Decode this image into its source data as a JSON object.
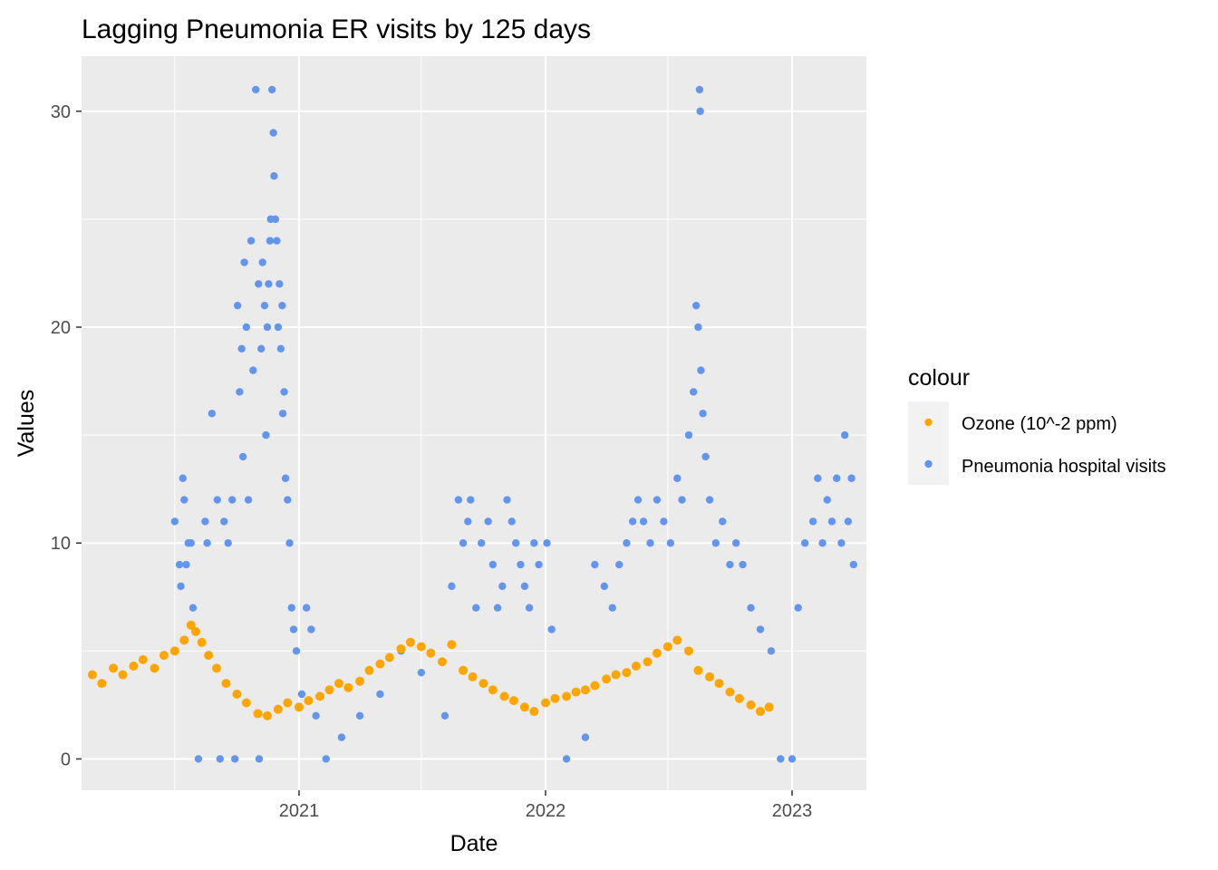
{
  "chart_data": {
    "type": "scatter",
    "title": "Lagging Pneumonia ER visits by 125 days",
    "xlabel": "Date",
    "ylabel": "Values",
    "x_axis_type": "date",
    "xlim": [
      "2020-02-14",
      "2023-04-21"
    ],
    "ylim": [
      -1.45,
      32.55
    ],
    "x_ticks": [
      {
        "date": "2021-01-01",
        "label": "2021"
      },
      {
        "date": "2022-01-01",
        "label": "2022"
      },
      {
        "date": "2023-01-01",
        "label": "2023"
      }
    ],
    "x_minor_ticks": [
      "2020-07-01",
      "2021-07-01",
      "2022-07-01"
    ],
    "y_ticks": [
      0,
      10,
      20,
      30
    ],
    "y_minor_ticks": [
      5,
      15,
      25
    ],
    "grid": true,
    "panel_background": "#ebebeb",
    "legend": {
      "title": "colour",
      "placement": "right",
      "entries": [
        "Ozone (10^-2 ppm)",
        "Pneumonia hospital visits"
      ]
    },
    "series": [
      {
        "name": "Pneumonia hospital visits",
        "color": "#6495ed",
        "points": [
          [
            "2020-07-01",
            11
          ],
          [
            "2020-07-08",
            9
          ],
          [
            "2020-07-10",
            8
          ],
          [
            "2020-07-13",
            13
          ],
          [
            "2020-07-15",
            12
          ],
          [
            "2020-07-18",
            9
          ],
          [
            "2020-07-21",
            10
          ],
          [
            "2020-07-25",
            10
          ],
          [
            "2020-07-28",
            7
          ],
          [
            "2020-08-05",
            0
          ],
          [
            "2020-08-15",
            11
          ],
          [
            "2020-08-18",
            10
          ],
          [
            "2020-08-25",
            16
          ],
          [
            "2020-09-02",
            12
          ],
          [
            "2020-09-06",
            0
          ],
          [
            "2020-09-12",
            11
          ],
          [
            "2020-09-18",
            10
          ],
          [
            "2020-09-24",
            12
          ],
          [
            "2020-09-28",
            0
          ],
          [
            "2020-10-02",
            21
          ],
          [
            "2020-10-05",
            17
          ],
          [
            "2020-10-08",
            19
          ],
          [
            "2020-10-10",
            14
          ],
          [
            "2020-10-12",
            23
          ],
          [
            "2020-10-15",
            20
          ],
          [
            "2020-10-18",
            12
          ],
          [
            "2020-10-22",
            24
          ],
          [
            "2020-10-25",
            18
          ],
          [
            "2020-10-29",
            31
          ],
          [
            "2020-11-02",
            22
          ],
          [
            "2020-11-03",
            0
          ],
          [
            "2020-11-06",
            19
          ],
          [
            "2020-11-08",
            23
          ],
          [
            "2020-11-11",
            21
          ],
          [
            "2020-11-13",
            15
          ],
          [
            "2020-11-15",
            20
          ],
          [
            "2020-11-17",
            22
          ],
          [
            "2020-11-19",
            24
          ],
          [
            "2020-11-20",
            25
          ],
          [
            "2020-11-22",
            31
          ],
          [
            "2020-11-24",
            29
          ],
          [
            "2020-11-25",
            27
          ],
          [
            "2020-11-27",
            25
          ],
          [
            "2020-11-29",
            24
          ],
          [
            "2020-12-01",
            20
          ],
          [
            "2020-12-03",
            22
          ],
          [
            "2020-12-05",
            19
          ],
          [
            "2020-12-07",
            21
          ],
          [
            "2020-12-08",
            16
          ],
          [
            "2020-12-10",
            17
          ],
          [
            "2020-12-12",
            13
          ],
          [
            "2020-12-15",
            12
          ],
          [
            "2020-12-18",
            10
          ],
          [
            "2020-12-21",
            7
          ],
          [
            "2020-12-24",
            6
          ],
          [
            "2020-12-28",
            5
          ],
          [
            "2021-01-05",
            3
          ],
          [
            "2021-01-12",
            7
          ],
          [
            "2021-01-19",
            6
          ],
          [
            "2021-01-26",
            2
          ],
          [
            "2021-02-10",
            0
          ],
          [
            "2021-03-05",
            1
          ],
          [
            "2021-04-01",
            2
          ],
          [
            "2021-05-01",
            3
          ],
          [
            "2021-06-01",
            5
          ],
          [
            "2021-07-01",
            4
          ],
          [
            "2021-08-05",
            2
          ],
          [
            "2021-08-15",
            8
          ],
          [
            "2021-08-25",
            12
          ],
          [
            "2021-09-01",
            10
          ],
          [
            "2021-09-08",
            11
          ],
          [
            "2021-09-12",
            12
          ],
          [
            "2021-09-20",
            7
          ],
          [
            "2021-09-28",
            10
          ],
          [
            "2021-10-08",
            11
          ],
          [
            "2021-10-15",
            9
          ],
          [
            "2021-10-22",
            7
          ],
          [
            "2021-10-29",
            8
          ],
          [
            "2021-11-05",
            12
          ],
          [
            "2021-11-12",
            11
          ],
          [
            "2021-11-18",
            10
          ],
          [
            "2021-11-25",
            9
          ],
          [
            "2021-12-01",
            8
          ],
          [
            "2021-12-08",
            7
          ],
          [
            "2021-12-15",
            10
          ],
          [
            "2021-12-22",
            9
          ],
          [
            "2022-01-03",
            10
          ],
          [
            "2022-01-10",
            6
          ],
          [
            "2022-02-01",
            0
          ],
          [
            "2022-03-01",
            1
          ],
          [
            "2022-03-15",
            9
          ],
          [
            "2022-03-29",
            8
          ],
          [
            "2022-04-10",
            7
          ],
          [
            "2022-04-20",
            9
          ],
          [
            "2022-05-01",
            10
          ],
          [
            "2022-05-10",
            11
          ],
          [
            "2022-05-18",
            12
          ],
          [
            "2022-05-26",
            11
          ],
          [
            "2022-06-05",
            10
          ],
          [
            "2022-06-15",
            12
          ],
          [
            "2022-06-25",
            11
          ],
          [
            "2022-07-05",
            10
          ],
          [
            "2022-07-15",
            13
          ],
          [
            "2022-07-22",
            12
          ],
          [
            "2022-08-01",
            15
          ],
          [
            "2022-08-08",
            17
          ],
          [
            "2022-08-12",
            21
          ],
          [
            "2022-08-15",
            20
          ],
          [
            "2022-08-17",
            31
          ],
          [
            "2022-08-18",
            30
          ],
          [
            "2022-08-19",
            18
          ],
          [
            "2022-08-22",
            16
          ],
          [
            "2022-08-26",
            14
          ],
          [
            "2022-09-01",
            12
          ],
          [
            "2022-09-10",
            10
          ],
          [
            "2022-09-20",
            11
          ],
          [
            "2022-10-01",
            9
          ],
          [
            "2022-10-10",
            10
          ],
          [
            "2022-10-20",
            9
          ],
          [
            "2022-11-01",
            7
          ],
          [
            "2022-11-15",
            6
          ],
          [
            "2022-12-01",
            5
          ],
          [
            "2022-12-15",
            0
          ],
          [
            "2023-01-01",
            0
          ],
          [
            "2023-01-10",
            7
          ],
          [
            "2023-01-20",
            10
          ],
          [
            "2023-02-01",
            11
          ],
          [
            "2023-02-08",
            13
          ],
          [
            "2023-02-15",
            10
          ],
          [
            "2023-02-22",
            12
          ],
          [
            "2023-03-01",
            11
          ],
          [
            "2023-03-08",
            13
          ],
          [
            "2023-03-15",
            10
          ],
          [
            "2023-03-20",
            15
          ],
          [
            "2023-03-25",
            11
          ],
          [
            "2023-03-30",
            13
          ],
          [
            "2023-04-02",
            9
          ]
        ]
      },
      {
        "name": "Ozone (10^-2 ppm)",
        "color": "#ffa500",
        "points": [
          [
            "2020-03-01",
            3.9
          ],
          [
            "2020-03-15",
            3.5
          ],
          [
            "2020-04-01",
            4.2
          ],
          [
            "2020-04-15",
            3.9
          ],
          [
            "2020-05-01",
            4.3
          ],
          [
            "2020-05-15",
            4.6
          ],
          [
            "2020-06-01",
            4.2
          ],
          [
            "2020-06-15",
            4.8
          ],
          [
            "2020-07-01",
            5.0
          ],
          [
            "2020-07-15",
            5.5
          ],
          [
            "2020-07-25",
            6.2
          ],
          [
            "2020-08-01",
            5.9
          ],
          [
            "2020-08-10",
            5.4
          ],
          [
            "2020-08-20",
            4.8
          ],
          [
            "2020-09-01",
            4.2
          ],
          [
            "2020-09-15",
            3.5
          ],
          [
            "2020-10-01",
            3.0
          ],
          [
            "2020-10-15",
            2.6
          ],
          [
            "2020-11-01",
            2.1
          ],
          [
            "2020-11-15",
            2.0
          ],
          [
            "2020-12-01",
            2.3
          ],
          [
            "2020-12-15",
            2.6
          ],
          [
            "2021-01-01",
            2.4
          ],
          [
            "2021-01-15",
            2.7
          ],
          [
            "2021-02-01",
            2.9
          ],
          [
            "2021-02-15",
            3.2
          ],
          [
            "2021-03-01",
            3.5
          ],
          [
            "2021-03-15",
            3.3
          ],
          [
            "2021-04-01",
            3.6
          ],
          [
            "2021-04-15",
            4.1
          ],
          [
            "2021-05-01",
            4.4
          ],
          [
            "2021-05-15",
            4.7
          ],
          [
            "2021-06-01",
            5.1
          ],
          [
            "2021-06-15",
            5.4
          ],
          [
            "2021-07-01",
            5.2
          ],
          [
            "2021-07-15",
            4.9
          ],
          [
            "2021-08-01",
            4.5
          ],
          [
            "2021-08-15",
            5.3
          ],
          [
            "2021-09-01",
            4.1
          ],
          [
            "2021-09-15",
            3.8
          ],
          [
            "2021-10-01",
            3.5
          ],
          [
            "2021-10-15",
            3.2
          ],
          [
            "2021-11-01",
            2.9
          ],
          [
            "2021-11-15",
            2.7
          ],
          [
            "2021-12-01",
            2.4
          ],
          [
            "2021-12-15",
            2.2
          ],
          [
            "2022-01-01",
            2.6
          ],
          [
            "2022-01-15",
            2.8
          ],
          [
            "2022-02-01",
            2.9
          ],
          [
            "2022-02-15",
            3.1
          ],
          [
            "2022-03-01",
            3.2
          ],
          [
            "2022-03-15",
            3.4
          ],
          [
            "2022-04-01",
            3.7
          ],
          [
            "2022-04-15",
            3.9
          ],
          [
            "2022-05-01",
            4.0
          ],
          [
            "2022-05-15",
            4.3
          ],
          [
            "2022-06-01",
            4.5
          ],
          [
            "2022-06-15",
            4.9
          ],
          [
            "2022-07-01",
            5.2
          ],
          [
            "2022-07-15",
            5.5
          ],
          [
            "2022-08-01",
            5.0
          ],
          [
            "2022-08-15",
            4.1
          ],
          [
            "2022-09-01",
            3.8
          ],
          [
            "2022-09-15",
            3.5
          ],
          [
            "2022-10-01",
            3.1
          ],
          [
            "2022-10-15",
            2.8
          ],
          [
            "2022-11-01",
            2.5
          ],
          [
            "2022-11-15",
            2.2
          ],
          [
            "2022-11-28",
            2.4
          ]
        ]
      }
    ]
  }
}
